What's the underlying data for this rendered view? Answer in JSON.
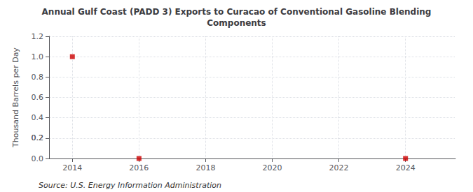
{
  "chart_data": {
    "type": "scatter",
    "title": "Annual Gulf Coast (PADD 3) Exports to Curacao of Conventional Gasoline Blending\nComponents",
    "ylabel": "Thousand Barrels per Day",
    "annotations": [
      "Source: U.S. Energy Information Administration"
    ],
    "x": [
      2014,
      2016,
      2024
    ],
    "values": [
      1.0,
      0.0,
      0.0
    ],
    "color": "#cc0000",
    "marker": "square",
    "xlim": [
      2013.3,
      2025.5
    ],
    "xticks": [
      2014,
      2016,
      2018,
      2020,
      2022,
      2024
    ],
    "ylim": [
      0.0,
      1.2
    ],
    "yticks": [
      {
        "value": 0.0,
        "label": "0.0"
      },
      0.2,
      0.4,
      0.6,
      0.8,
      {
        "value": 1.0,
        "label": "1.0"
      },
      0.2,
      1.2
    ],
    "grid": true
  }
}
